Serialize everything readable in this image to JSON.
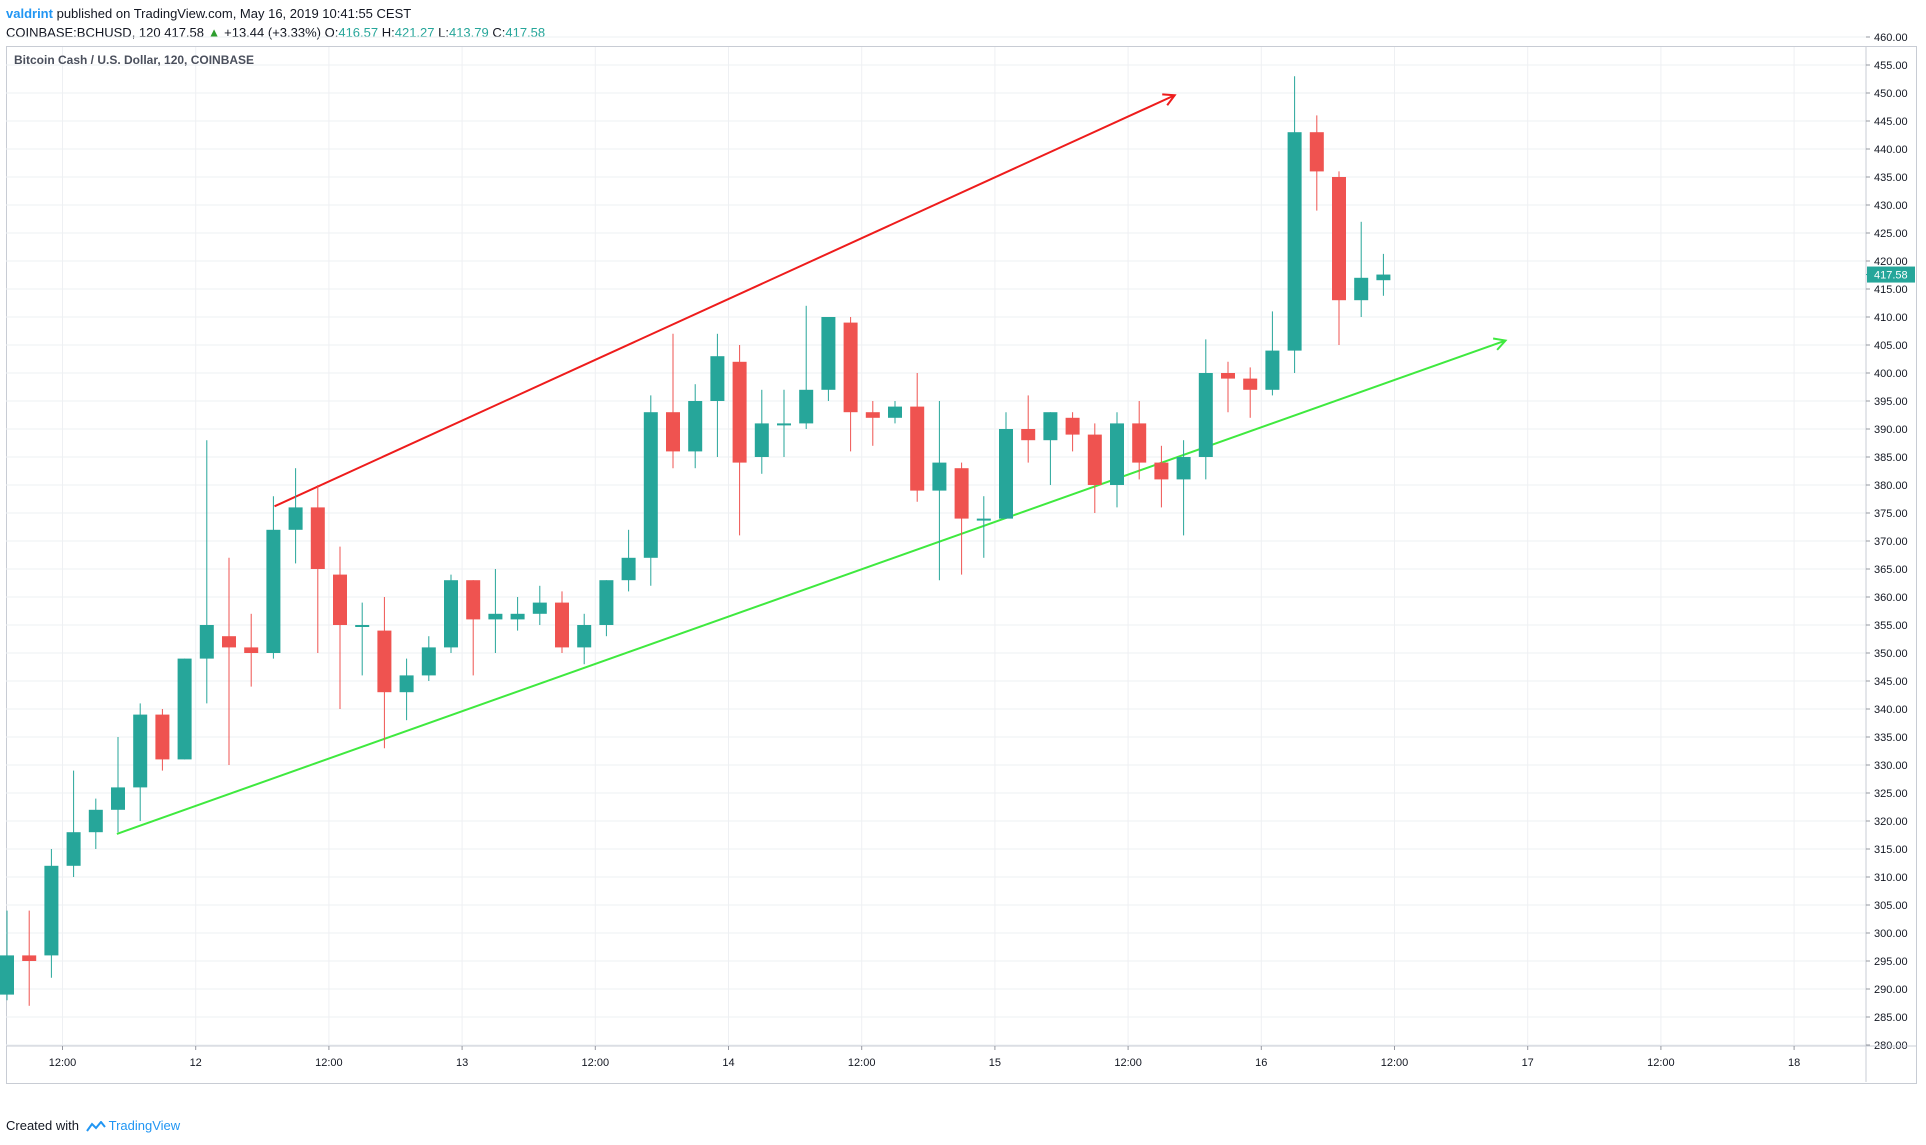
{
  "header": {
    "user": "valdrint",
    "published_text": "published on TradingView.com, May 16, 2019 10:41:55 CEST",
    "symbol_interval": "COINBASE:BCHUSD, 120",
    "last_price": "417.58",
    "change": "+13.44 (+3.33%)",
    "open_label": "O:",
    "open": "416.57",
    "high_label": "H:",
    "high": "421.27",
    "low_label": "L:",
    "low": "413.79",
    "close_label": "C:",
    "close": "417.58"
  },
  "footer": {
    "created_with": "Created with",
    "brand": "TradingView"
  },
  "colors": {
    "up": "#26a69a",
    "down": "#ef5350",
    "resistance_line": "#ee1c1c",
    "support_line": "#3fe93f",
    "grid": "#eef0f3",
    "price_tag": "#26a69a"
  },
  "chart_data": {
    "type": "candlestick",
    "title": "Bitcoin Cash / U.S. Dollar, 120, COINBASE",
    "ylim": [
      276,
      461
    ],
    "y_ticks": [
      "280.00",
      "285.00",
      "290.00",
      "295.00",
      "300.00",
      "305.00",
      "310.00",
      "315.00",
      "320.00",
      "325.00",
      "330.00",
      "335.00",
      "340.00",
      "345.00",
      "350.00",
      "355.00",
      "360.00",
      "365.00",
      "370.00",
      "375.00",
      "380.00",
      "385.00",
      "390.00",
      "395.00",
      "400.00",
      "405.00",
      "410.00",
      "415.00",
      "420.00",
      "425.00",
      "430.00",
      "435.00",
      "440.00",
      "445.00",
      "450.00",
      "455.00",
      "460.00"
    ],
    "x_ticks": [
      "12:00",
      "12",
      "12:00",
      "13",
      "12:00",
      "14",
      "12:00",
      "15",
      "12:00",
      "16",
      "12:00",
      "17",
      "12:00",
      "18"
    ],
    "x_start": "May 11 07:00",
    "interval": "2h",
    "candles": [
      {
        "o": 289,
        "h": 304,
        "l": 288,
        "c": 296
      },
      {
        "o": 296,
        "h": 304,
        "l": 287,
        "c": 295
      },
      {
        "o": 296,
        "h": 315,
        "l": 292,
        "c": 312
      },
      {
        "o": 312,
        "h": 329,
        "l": 310,
        "c": 318
      },
      {
        "o": 318,
        "h": 324,
        "l": 315,
        "c": 322
      },
      {
        "o": 322,
        "h": 335,
        "l": 318,
        "c": 326
      },
      {
        "o": 326,
        "h": 341,
        "l": 320,
        "c": 339
      },
      {
        "o": 339,
        "h": 340,
        "l": 329,
        "c": 331
      },
      {
        "o": 331,
        "h": 349,
        "l": 331,
        "c": 349
      },
      {
        "o": 349,
        "h": 388,
        "l": 341,
        "c": 355
      },
      {
        "o": 353,
        "h": 367,
        "l": 330,
        "c": 351
      },
      {
        "o": 351,
        "h": 357,
        "l": 344,
        "c": 350
      },
      {
        "o": 350,
        "h": 378,
        "l": 349,
        "c": 372
      },
      {
        "o": 372,
        "h": 383,
        "l": 366,
        "c": 376
      },
      {
        "o": 376,
        "h": 380,
        "l": 350,
        "c": 365
      },
      {
        "o": 364,
        "h": 369,
        "l": 340,
        "c": 355
      },
      {
        "o": 355,
        "h": 359,
        "l": 346,
        "c": 355
      },
      {
        "o": 354,
        "h": 360,
        "l": 333,
        "c": 343
      },
      {
        "o": 343,
        "h": 349,
        "l": 338,
        "c": 346
      },
      {
        "o": 346,
        "h": 353,
        "l": 345,
        "c": 351
      },
      {
        "o": 351,
        "h": 364,
        "l": 350,
        "c": 363
      },
      {
        "o": 363,
        "h": 363,
        "l": 346,
        "c": 356
      },
      {
        "o": 356,
        "h": 365,
        "l": 350,
        "c": 357
      },
      {
        "o": 356,
        "h": 360,
        "l": 354,
        "c": 357
      },
      {
        "o": 357,
        "h": 362,
        "l": 355,
        "c": 359
      },
      {
        "o": 359,
        "h": 361,
        "l": 350,
        "c": 351
      },
      {
        "o": 351,
        "h": 357,
        "l": 348,
        "c": 355
      },
      {
        "o": 355,
        "h": 363,
        "l": 353,
        "c": 363
      },
      {
        "o": 363,
        "h": 372,
        "l": 361,
        "c": 367
      },
      {
        "o": 367,
        "h": 396,
        "l": 362,
        "c": 393
      },
      {
        "o": 393,
        "h": 407,
        "l": 383,
        "c": 386
      },
      {
        "o": 386,
        "h": 398,
        "l": 383,
        "c": 395
      },
      {
        "o": 395,
        "h": 407,
        "l": 385,
        "c": 403
      },
      {
        "o": 402,
        "h": 405,
        "l": 371,
        "c": 384
      },
      {
        "o": 385,
        "h": 397,
        "l": 382,
        "c": 391
      },
      {
        "o": 391,
        "h": 397,
        "l": 385,
        "c": 391
      },
      {
        "o": 391,
        "h": 412,
        "l": 390,
        "c": 397
      },
      {
        "o": 397,
        "h": 410,
        "l": 395,
        "c": 410
      },
      {
        "o": 409,
        "h": 410,
        "l": 386,
        "c": 393
      },
      {
        "o": 393,
        "h": 395,
        "l": 387,
        "c": 392
      },
      {
        "o": 392,
        "h": 395,
        "l": 391,
        "c": 394
      },
      {
        "o": 394,
        "h": 400,
        "l": 377,
        "c": 379
      },
      {
        "o": 379,
        "h": 395,
        "l": 363,
        "c": 384
      },
      {
        "o": 383,
        "h": 384,
        "l": 364,
        "c": 374
      },
      {
        "o": 374,
        "h": 378,
        "l": 367,
        "c": 374
      },
      {
        "o": 374,
        "h": 393,
        "l": 374,
        "c": 390
      },
      {
        "o": 390,
        "h": 396,
        "l": 384,
        "c": 388
      },
      {
        "o": 388,
        "h": 393,
        "l": 380,
        "c": 393
      },
      {
        "o": 392,
        "h": 393,
        "l": 386,
        "c": 389
      },
      {
        "o": 389,
        "h": 391,
        "l": 375,
        "c": 380
      },
      {
        "o": 380,
        "h": 393,
        "l": 376,
        "c": 391
      },
      {
        "o": 391,
        "h": 395,
        "l": 381,
        "c": 384
      },
      {
        "o": 384,
        "h": 387,
        "l": 376,
        "c": 381
      },
      {
        "o": 381,
        "h": 388,
        "l": 371,
        "c": 385
      },
      {
        "o": 385,
        "h": 406,
        "l": 381,
        "c": 400
      },
      {
        "o": 400,
        "h": 402,
        "l": 393,
        "c": 399
      },
      {
        "o": 399,
        "h": 401,
        "l": 392,
        "c": 397
      },
      {
        "o": 397,
        "h": 411,
        "l": 396,
        "c": 404
      },
      {
        "o": 404,
        "h": 453,
        "l": 400,
        "c": 443
      },
      {
        "o": 443,
        "h": 446,
        "l": 429,
        "c": 436
      },
      {
        "o": 435,
        "h": 436,
        "l": 405,
        "c": 413
      },
      {
        "o": 413,
        "h": 427,
        "l": 410,
        "c": 417
      },
      {
        "o": 416.57,
        "h": 421.27,
        "l": 413.79,
        "c": 417.58
      }
    ],
    "trendlines": [
      {
        "name": "resistance",
        "from": [
          12.05,
          376.2
        ],
        "to": [
          52.6,
          449.6
        ],
        "arrow": true
      },
      {
        "name": "support",
        "from": [
          4.95,
          317.7
        ],
        "to": [
          67.5,
          405.8
        ],
        "arrow": true
      }
    ],
    "last_price_label": "417.58"
  }
}
